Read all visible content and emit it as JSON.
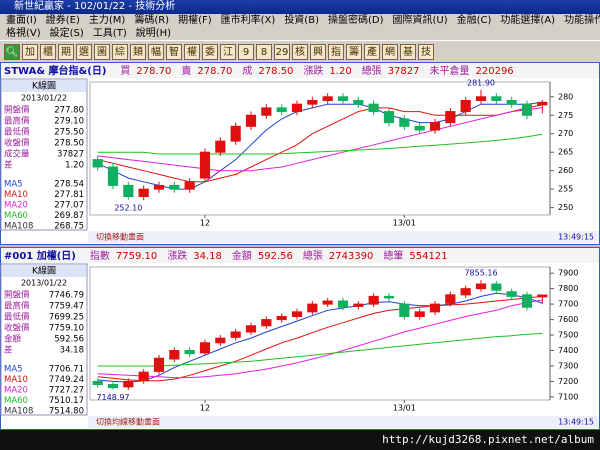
{
  "window": {
    "title": "新世紀贏家 - 102/01/22 - 技術分析"
  },
  "menu": [
    [
      "畫面(I)",
      "證券(E)",
      "主力(M)",
      "籌碼(R)",
      "期權(F)",
      "匯市利率(X)",
      "投資(B)",
      "操盤密碼(D)",
      "國際資訊(U)",
      "金融(C)",
      "功能選擇(A)",
      "功能操作(F)"
    ],
    [
      "格視(V)",
      "設定(S)",
      "工具(T)",
      "說明(H)"
    ]
  ],
  "toolbar": [
    "加",
    "櫃",
    "期",
    "選",
    "圖",
    "綜",
    "類",
    "幅",
    "智",
    "權",
    "委",
    "江",
    "9",
    "8",
    "29",
    "核",
    "興",
    "指",
    "籌",
    "產",
    "網",
    "基",
    "技"
  ],
  "footer": {
    "url": "http://kujd3268.pixnet.net/album"
  },
  "chart_data": [
    {
      "type": "candlestick",
      "title": "STWA& 摩台指&(日)",
      "quote": [
        {
          "label": "買",
          "value": "278.70"
        },
        {
          "label": "賣",
          "value": "278.70"
        },
        {
          "label": "成",
          "value": "278.50"
        },
        {
          "label": "漲跌",
          "value": "1.20"
        },
        {
          "label": "總張",
          "value": "37827"
        },
        {
          "label": "未平倉量",
          "value": "220296"
        }
      ],
      "panel_title": "K線圖",
      "date": "2013/01/22",
      "info": [
        {
          "label": "開盤價",
          "value": "277.80"
        },
        {
          "label": "最高價",
          "value": "279.10"
        },
        {
          "label": "最低價",
          "value": "275.50"
        },
        {
          "label": "收盤價",
          "value": "278.50"
        },
        {
          "label": "成交量",
          "value": "37827"
        },
        {
          "label": "差",
          "value": "1.20"
        }
      ],
      "info_extra": [
        {
          "label": "MA108",
          "value": "268.75"
        }
      ],
      "categories": [
        null,
        null,
        null,
        null,
        null,
        null,
        null,
        "12",
        null,
        null,
        null,
        null,
        null,
        null,
        null,
        null,
        null,
        null,
        null,
        null,
        "13/01",
        null,
        null,
        null,
        null,
        null,
        null,
        null,
        null,
        null
      ],
      "open": [
        263,
        261,
        256,
        253,
        255,
        256,
        255,
        258,
        265,
        268,
        272,
        275,
        277,
        276,
        278,
        279,
        280,
        279,
        278,
        276,
        274,
        272,
        271,
        273,
        276,
        279,
        280,
        279,
        278,
        277.8
      ],
      "high": [
        264,
        262,
        257,
        256,
        257,
        257,
        258,
        266,
        269,
        273,
        276,
        278,
        278,
        279,
        280,
        281,
        281,
        280,
        279,
        277,
        275,
        273,
        274,
        277,
        280,
        281.9,
        281,
        280,
        279,
        279.1
      ],
      "low": [
        260,
        255,
        252.1,
        252,
        254,
        254,
        254,
        257,
        264,
        267,
        271,
        274,
        275,
        275,
        277,
        278,
        278,
        277,
        275,
        272,
        271,
        270,
        270,
        272,
        275,
        278,
        278,
        277,
        274,
        275.5
      ],
      "close": [
        261,
        256,
        253,
        255,
        256,
        255,
        257,
        265,
        268,
        272,
        275,
        277,
        276,
        278,
        279,
        280,
        279,
        278,
        276,
        273,
        272,
        271,
        273,
        276,
        279,
        280,
        279,
        278,
        275,
        278.5
      ],
      "series": [
        {
          "name": "MA5",
          "color": "#1f3fd0",
          "value_label": "278.54",
          "values": [
            262,
            260,
            258,
            257,
            256,
            255,
            255,
            257,
            260,
            263,
            267,
            271,
            274,
            276,
            277,
            278,
            278,
            278,
            277,
            275,
            274,
            273,
            273,
            274,
            276,
            278,
            278,
            278,
            278,
            278.54
          ]
        },
        {
          "name": "MA10",
          "color": "#e01010",
          "value_label": "277.81",
          "values": [
            263,
            262,
            261,
            260,
            259,
            258,
            257,
            257,
            258,
            259,
            261,
            263,
            265,
            267,
            270,
            272,
            274,
            276,
            277,
            277,
            276,
            276,
            275,
            275,
            275,
            275,
            275,
            276,
            277,
            277.81
          ]
        },
        {
          "name": "MA20",
          "color": "#e020e0",
          "value_label": "277.07",
          "values": [
            264,
            263.5,
            263,
            262.5,
            262,
            261.5,
            261,
            260.5,
            260,
            260,
            260,
            260.5,
            261,
            262,
            263,
            264,
            265,
            266,
            267,
            268,
            269,
            270,
            271,
            272,
            273,
            274,
            275,
            276,
            276.5,
            277.07
          ]
        },
        {
          "name": "MA60",
          "color": "#20c020",
          "value_label": "269.87",
          "values": [
            265,
            265,
            265,
            265,
            264.5,
            264.5,
            264.5,
            264.5,
            264.5,
            264.5,
            264.5,
            264.5,
            264.6,
            264.8,
            265,
            265.2,
            265.4,
            265.6,
            265.8,
            266,
            266.3,
            266.6,
            266.9,
            267.2,
            267.5,
            267.8,
            268.2,
            268.6,
            269.2,
            269.87
          ]
        }
      ],
      "up_color": "#e01010",
      "down_color": "#10b060",
      "annotations": [
        {
          "label": "281.90",
          "value": 281.9
        },
        {
          "label": "252.10",
          "value": 252.1
        }
      ],
      "ylim": [
        248,
        284
      ],
      "yticks": [
        250,
        255,
        260,
        265,
        270,
        275,
        280
      ],
      "status": "切換移動畫面",
      "time": "13:49:15"
    },
    {
      "type": "candlestick",
      "title": "#001 加權(日)",
      "quote": [
        {
          "label": "指數",
          "value": "7759.10"
        },
        {
          "label": "漲跌",
          "value": "34.18"
        },
        {
          "label": "金額",
          "value": "592.56"
        },
        {
          "label": "總張",
          "value": "2743390"
        },
        {
          "label": "總筆",
          "value": "554121"
        }
      ],
      "panel_title": "K線圖",
      "date": "2013/01/22",
      "info": [
        {
          "label": "開盤價",
          "value": "7746.79"
        },
        {
          "label": "最高價",
          "value": "7759.47"
        },
        {
          "label": "最低價",
          "value": "7699.25"
        },
        {
          "label": "收盤價",
          "value": "7759.10"
        },
        {
          "label": "金額",
          "value": "592.56"
        },
        {
          "label": "差",
          "value": "34.18"
        }
      ],
      "info_extra": [
        {
          "label": "MA108",
          "value": "7514.80"
        }
      ],
      "categories": [
        null,
        null,
        null,
        null,
        null,
        null,
        null,
        "12",
        null,
        null,
        null,
        null,
        null,
        null,
        null,
        null,
        null,
        null,
        null,
        null,
        "13/01",
        null,
        null,
        null,
        null,
        null,
        null,
        null,
        null,
        null
      ],
      "open": [
        7200,
        7180,
        7165,
        7205,
        7265,
        7345,
        7400,
        7385,
        7450,
        7485,
        7520,
        7560,
        7600,
        7620,
        7650,
        7700,
        7720,
        7685,
        7700,
        7750,
        7700,
        7620,
        7650,
        7705,
        7760,
        7800,
        7830,
        7780,
        7760,
        7746.79
      ],
      "high": [
        7220,
        7200,
        7220,
        7280,
        7370,
        7420,
        7420,
        7470,
        7500,
        7540,
        7580,
        7620,
        7640,
        7670,
        7720,
        7740,
        7740,
        7720,
        7770,
        7770,
        7720,
        7670,
        7720,
        7780,
        7820,
        7855.16,
        7850,
        7800,
        7780,
        7759.47
      ],
      "low": [
        7160,
        7148.97,
        7145,
        7185,
        7245,
        7325,
        7360,
        7365,
        7430,
        7465,
        7500,
        7540,
        7580,
        7600,
        7630,
        7680,
        7660,
        7665,
        7680,
        7720,
        7600,
        7600,
        7630,
        7685,
        7740,
        7780,
        7770,
        7730,
        7660,
        7699.25
      ],
      "close": [
        7180,
        7160,
        7200,
        7260,
        7350,
        7400,
        7380,
        7450,
        7480,
        7520,
        7560,
        7600,
        7620,
        7650,
        7700,
        7720,
        7680,
        7700,
        7750,
        7740,
        7620,
        7650,
        7700,
        7760,
        7800,
        7830,
        7790,
        7750,
        7680,
        7759.1
      ],
      "series": [
        {
          "name": "MA5",
          "color": "#1f3fd0",
          "value_label": "7706.71",
          "values": [
            7210,
            7200,
            7195,
            7205,
            7240,
            7290,
            7330,
            7370,
            7410,
            7450,
            7480,
            7520,
            7555,
            7590,
            7625,
            7660,
            7675,
            7690,
            7710,
            7715,
            7700,
            7690,
            7690,
            7700,
            7720,
            7750,
            7770,
            7760,
            7740,
            7706.71
          ]
        },
        {
          "name": "MA10",
          "color": "#e01010",
          "value_label": "7749.24",
          "values": [
            7230,
            7220,
            7210,
            7205,
            7205,
            7215,
            7240,
            7270,
            7300,
            7330,
            7370,
            7410,
            7450,
            7480,
            7515,
            7550,
            7580,
            7610,
            7640,
            7660,
            7670,
            7680,
            7690,
            7695,
            7700,
            7710,
            7720,
            7730,
            7740,
            7749.24
          ]
        },
        {
          "name": "MA20",
          "color": "#e020e0",
          "value_label": "7727.27",
          "values": [
            7250,
            7245,
            7240,
            7235,
            7230,
            7225,
            7225,
            7230,
            7240,
            7250,
            7265,
            7280,
            7300,
            7320,
            7345,
            7370,
            7400,
            7430,
            7460,
            7490,
            7520,
            7545,
            7570,
            7595,
            7620,
            7640,
            7660,
            7690,
            7710,
            7727.27
          ]
        },
        {
          "name": "MA60",
          "color": "#20c020",
          "value_label": "7510.17",
          "values": [
            7300,
            7300,
            7300,
            7300,
            7300,
            7305,
            7310,
            7315,
            7320,
            7325,
            7330,
            7340,
            7350,
            7360,
            7370,
            7380,
            7390,
            7400,
            7410,
            7420,
            7430,
            7440,
            7450,
            7460,
            7470,
            7480,
            7490,
            7495,
            7505,
            7510.17
          ]
        }
      ],
      "up_color": "#e01010",
      "down_color": "#10b060",
      "annotations": [
        {
          "label": "7855.16",
          "value": 7855.16
        },
        {
          "label": "7148.97",
          "value": 7148.97
        }
      ],
      "ylim": [
        7080,
        7940
      ],
      "yticks": [
        7100,
        7200,
        7300,
        7400,
        7500,
        7600,
        7700,
        7800,
        7900
      ],
      "status": "切換均線移動畫面",
      "time": "13:49:15"
    }
  ]
}
